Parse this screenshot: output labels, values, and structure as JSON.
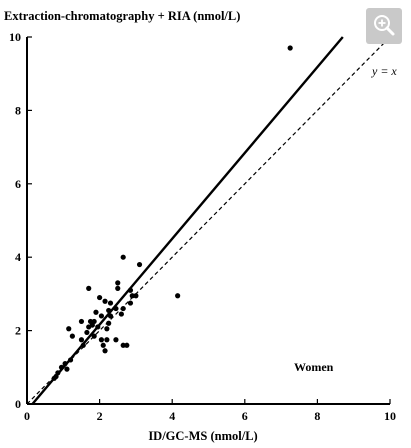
{
  "chart_data": {
    "type": "scatter",
    "title": "Extraction-chromatography + RIA (nmol/L)",
    "ylabel": "Extraction-chromatography + RIA (nmol/L)",
    "xlabel": "ID/GC-MS (nmol/L)",
    "xlim": [
      0,
      10
    ],
    "ylim": [
      0,
      10
    ],
    "x_ticks": [
      0,
      2,
      4,
      6,
      8,
      10
    ],
    "y_ticks": [
      0,
      2,
      4,
      6,
      8,
      10
    ],
    "x_tick_labels": [
      "0",
      "2",
      "4",
      "6",
      "8",
      "10"
    ],
    "y_tick_labels": [
      "0",
      "2",
      "4",
      "6",
      "8",
      "10"
    ],
    "grid": false,
    "group_label": "Women",
    "identity_label": "y = x",
    "regression_line": {
      "x1": 0.15,
      "y1": 0,
      "x2": 8.7,
      "y2": 10
    },
    "identity_line": {
      "x1": 0,
      "y1": 0,
      "x2": 10,
      "y2": 10
    },
    "points": [
      [
        7.25,
        9.7
      ],
      [
        4.15,
        2.95
      ],
      [
        2.65,
        4.0
      ],
      [
        3.1,
        3.8
      ],
      [
        2.5,
        3.3
      ],
      [
        1.7,
        3.15
      ],
      [
        2.5,
        3.15
      ],
      [
        2.85,
        3.1
      ],
      [
        2.65,
        2.6
      ],
      [
        2.9,
        2.95
      ],
      [
        3.0,
        2.95
      ],
      [
        2.0,
        2.9
      ],
      [
        2.15,
        2.8
      ],
      [
        2.3,
        2.75
      ],
      [
        2.85,
        2.75
      ],
      [
        2.45,
        2.6
      ],
      [
        2.25,
        2.55
      ],
      [
        1.9,
        2.5
      ],
      [
        2.05,
        2.4
      ],
      [
        2.3,
        2.4
      ],
      [
        2.6,
        2.45
      ],
      [
        1.5,
        2.25
      ],
      [
        1.75,
        2.25
      ],
      [
        1.85,
        2.25
      ],
      [
        2.25,
        2.2
      ],
      [
        1.8,
        2.15
      ],
      [
        1.7,
        2.1
      ],
      [
        1.95,
        2.1
      ],
      [
        2.2,
        2.05
      ],
      [
        1.15,
        2.05
      ],
      [
        1.65,
        1.95
      ],
      [
        1.85,
        1.85
      ],
      [
        1.25,
        1.85
      ],
      [
        2.05,
        1.75
      ],
      [
        2.2,
        1.75
      ],
      [
        2.45,
        1.75
      ],
      [
        1.5,
        1.75
      ],
      [
        1.55,
        1.6
      ],
      [
        2.1,
        1.6
      ],
      [
        2.65,
        1.6
      ],
      [
        2.75,
        1.6
      ],
      [
        2.15,
        1.45
      ],
      [
        1.2,
        1.2
      ],
      [
        1.05,
        1.1
      ],
      [
        0.95,
        1.0
      ],
      [
        1.1,
        0.95
      ],
      [
        0.85,
        0.85
      ],
      [
        0.8,
        0.75
      ],
      [
        0.75,
        0.7
      ]
    ]
  },
  "ui": {
    "zoom_button_icon": "zoom-in-icon"
  }
}
